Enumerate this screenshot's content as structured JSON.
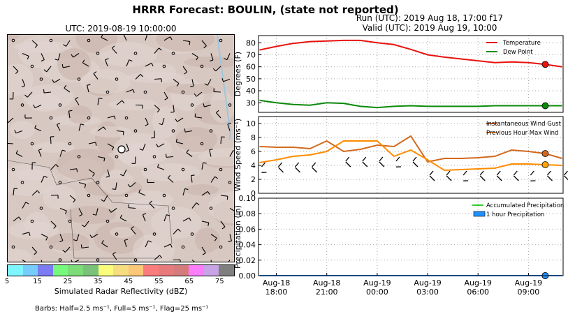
{
  "header": {
    "title": "HRRR Forecast: BOULIN, (state not reported)",
    "run_line": "Run (UTC): 2019 Aug 18, 17:00 f17",
    "valid_line": "Valid (UTC): 2019 Aug 19, 10:00"
  },
  "map": {
    "title": "UTC: 2019-08-19 10:00:00",
    "colorbar_label": "Simulated Radar Reflectivity (dBZ)",
    "colorbar_ticks": [
      "5",
      "15",
      "25",
      "35",
      "45",
      "55",
      "65",
      "75"
    ],
    "colorbar_colors": [
      "#7ff5ff",
      "#76cdfb",
      "#7b7bf3",
      "#76f97a",
      "#7bdc78",
      "#7ac27a",
      "#fbfb7c",
      "#f5dd80",
      "#fbc87a",
      "#fa7c7c",
      "#e77a7a",
      "#d67b7b",
      "#fa7dfa",
      "#c8a3e6",
      "#7f7f7f"
    ],
    "barbs_note": "Barbs: Half=2.5 ms⁻¹, Full=5 ms⁻¹, Flag=25 ms⁻¹",
    "background_color": "#d8c8c2"
  },
  "chart_data": [
    {
      "type": "line",
      "ylabel": "Degrees (F)",
      "ylim": [
        22,
        86
      ],
      "yticks": [
        30,
        40,
        50,
        60,
        70,
        80
      ],
      "x": [
        "2019-08-18 17:00",
        "18:00",
        "19:00",
        "20:00",
        "21:00",
        "22:00",
        "23:00",
        "2019-08-19 00:00",
        "01:00",
        "02:00",
        "03:00",
        "04:00",
        "05:00",
        "06:00",
        "07:00",
        "08:00",
        "09:00",
        "10:00",
        "11:00"
      ],
      "series": [
        {
          "name": "Temperature",
          "color": "#e8130c",
          "values": [
            74,
            77,
            79.5,
            81,
            81.5,
            82,
            82,
            80,
            78.5,
            74.5,
            70,
            68,
            66.5,
            65,
            63.5,
            64,
            63.5,
            62,
            60
          ]
        },
        {
          "name": "Dew Point",
          "color": "#0a8a0a",
          "values": [
            32,
            30,
            28.5,
            28,
            30,
            29.5,
            27,
            26,
            27,
            27.5,
            27,
            27,
            27,
            27,
            27.5,
            27.5,
            27.5,
            27.5,
            27.5
          ]
        }
      ],
      "marker_index": 17,
      "legend": "top-right",
      "grid": true
    },
    {
      "type": "line",
      "ylabel": "Wind Speed (ms⁻¹)",
      "ylim": [
        0,
        11
      ],
      "yticks": [
        0,
        2,
        4,
        6,
        8,
        10
      ],
      "series": [
        {
          "name": "Instantaneous Wind Gust",
          "color": "#d2691e",
          "values": [
            6.7,
            6.6,
            6.6,
            6.4,
            7.5,
            6.0,
            6.3,
            6.9,
            6.7,
            8.2,
            4.5,
            5.0,
            5.0,
            5.1,
            5.3,
            6.2,
            6.0,
            5.7,
            5.0
          ]
        },
        {
          "name": "Previous Hour Max Wind",
          "color": "#ff8c00",
          "values": [
            4.4,
            4.8,
            5.3,
            5.5,
            6.0,
            7.5,
            7.5,
            7.5,
            5.3,
            6.2,
            4.8,
            3.3,
            3.4,
            3.5,
            3.6,
            4.2,
            4.2,
            4.1,
            4.0
          ]
        }
      ],
      "marker_index": 17,
      "legend": "top-right",
      "grid": true
    },
    {
      "type": "line",
      "ylabel": "Precipitation (in)",
      "ylim": [
        0,
        0.1
      ],
      "yticks": [
        "0.00",
        "0.02",
        "0.04",
        "0.06",
        "0.08",
        "0.10"
      ],
      "series": [
        {
          "name": "Accumulated Precipitation",
          "color": "#32cd32",
          "values": [
            0,
            0,
            0,
            0,
            0,
            0,
            0,
            0,
            0,
            0,
            0,
            0,
            0,
            0,
            0,
            0,
            0,
            0,
            0
          ]
        },
        {
          "name": "1 hour Precipitation",
          "color": "#1e90ff",
          "values": [
            0,
            0,
            0,
            0,
            0,
            0,
            0,
            0,
            0,
            0,
            0,
            0,
            0,
            0,
            0,
            0,
            0,
            0,
            0
          ]
        }
      ],
      "marker_index": 17,
      "legend": "top-right",
      "grid": true,
      "xtick_labels": [
        [
          "Aug-18",
          "18:00"
        ],
        [
          "Aug-18",
          "21:00"
        ],
        [
          "Aug-19",
          "00:00"
        ],
        [
          "Aug-19",
          "03:00"
        ],
        [
          "Aug-19",
          "06:00"
        ],
        [
          "Aug-19",
          "09:00"
        ]
      ]
    }
  ]
}
